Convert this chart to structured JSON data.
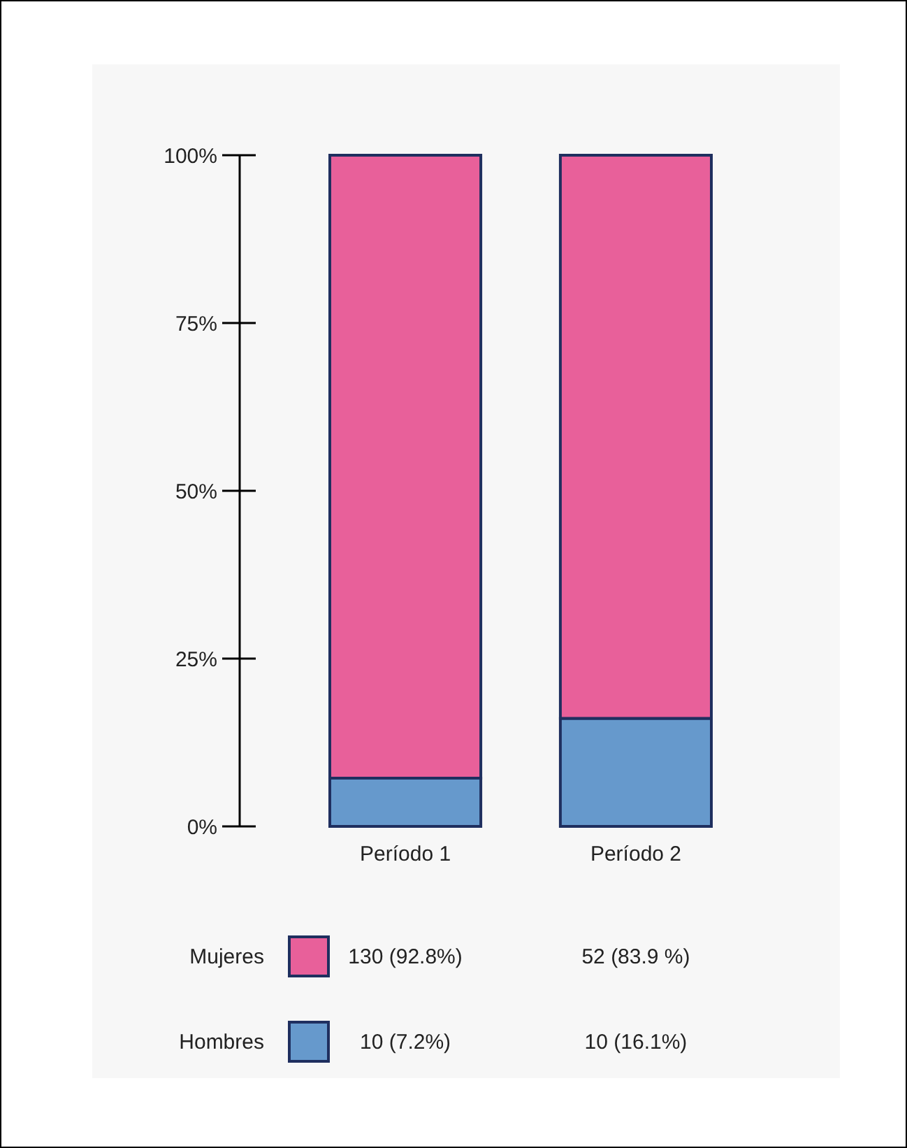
{
  "chart_data": {
    "type": "bar",
    "stacked": true,
    "categories": [
      "Período 1",
      "Período 2"
    ],
    "series": [
      {
        "name": "Hombres",
        "color": "#6699cc",
        "values": [
          7.2,
          16.1
        ],
        "value_labels": [
          "10 (7.2%)",
          "10 (16.1%)"
        ]
      },
      {
        "name": "Mujeres",
        "color": "#e8609a",
        "values": [
          92.8,
          83.9
        ],
        "value_labels": [
          "130 (92.8%)",
          "52 (83.9 %)"
        ]
      }
    ],
    "ylim": [
      0,
      100
    ],
    "yticks": [
      {
        "value": 0,
        "label": "0%"
      },
      {
        "value": 25,
        "label": "25%"
      },
      {
        "value": 50,
        "label": "50%"
      },
      {
        "value": 75,
        "label": "75%"
      },
      {
        "value": 100,
        "label": "100%"
      }
    ],
    "grid": false,
    "legend": "bottom"
  }
}
